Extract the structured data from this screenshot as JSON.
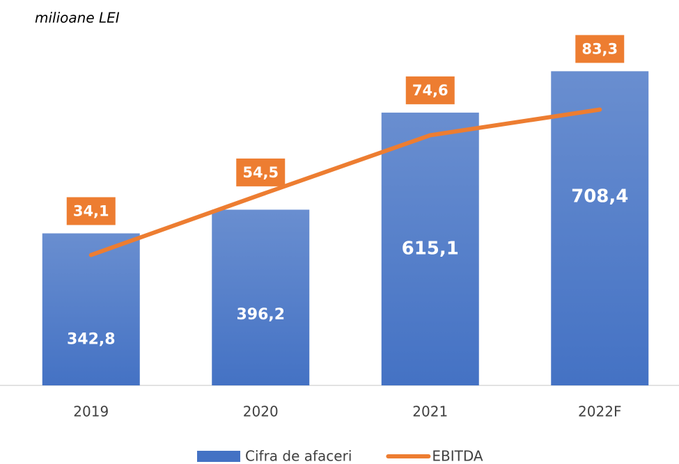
{
  "chart_data": {
    "type": "bar",
    "subtitle": "milioane LEI",
    "categories": [
      "2019",
      "2020",
      "2021",
      "2022F"
    ],
    "ylim": [
      0,
      800
    ],
    "y2lim": [
      -10,
      110
    ],
    "series": [
      {
        "name": "Cifra de afaceri",
        "type": "bar",
        "color": "#4472c4",
        "values": [
          342.8,
          396.2,
          615.1,
          708.4
        ],
        "value_labels": [
          "342,8",
          "396,2",
          "615,1",
          "708,4"
        ]
      },
      {
        "name": "EBITDA",
        "type": "line",
        "axis": "y2",
        "color": "#ed7d31",
        "values": [
          34.1,
          54.5,
          74.6,
          83.3
        ],
        "value_labels": [
          "34,1",
          "54,5",
          "74,6",
          "83,3"
        ]
      }
    ],
    "legend": "bottom"
  }
}
